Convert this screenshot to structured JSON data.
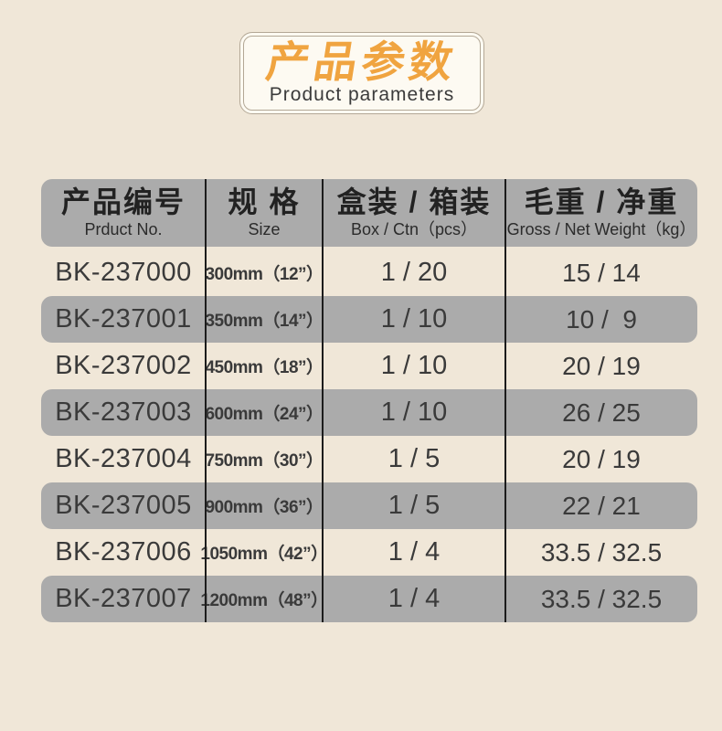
{
  "page": {
    "background": "#f0e7d8"
  },
  "badge": {
    "title_cn": "产品参数",
    "title_en": "Product parameters",
    "accent_color": "#f0a440",
    "border_color": "#b3a896",
    "fill_color": "#fdfaf2"
  },
  "table": {
    "header": [
      {
        "cn": "产品编号",
        "en": "Prduct No."
      },
      {
        "cn": "规 格",
        "en": "Size"
      },
      {
        "cn": "盒装 / 箱装",
        "en": "Box / Ctn（pcs）"
      },
      {
        "cn": "毛重 / 净重",
        "en": "Gross / Net Weight（kg）"
      }
    ],
    "rows": [
      {
        "product_no": "BK-237000",
        "size": "300mm（12”）",
        "box_ctn": "1 / 20",
        "gross_net": "15 / 14"
      },
      {
        "product_no": "BK-237001",
        "size": "350mm（14”）",
        "box_ctn": "1 / 10",
        "gross_net": "10 /  9"
      },
      {
        "product_no": "BK-237002",
        "size": "450mm（18”）",
        "box_ctn": "1 / 10",
        "gross_net": "20 / 19"
      },
      {
        "product_no": "BK-237003",
        "size": "600mm（24”）",
        "box_ctn": "1 / 10",
        "gross_net": "26 / 25"
      },
      {
        "product_no": "BK-237004",
        "size": "750mm（30”）",
        "box_ctn": "1 / 5",
        "gross_net": "20 / 19"
      },
      {
        "product_no": "BK-237005",
        "size": "900mm（36”）",
        "box_ctn": "1 / 5",
        "gross_net": "22 / 21"
      },
      {
        "product_no": "BK-237006",
        "size": "1050mm（42”）",
        "box_ctn": "1 / 4",
        "gross_net": "33.5 / 32.5"
      },
      {
        "product_no": "BK-237007",
        "size": "1200mm（48”）",
        "box_ctn": "1 / 4",
        "gross_net": "33.5 / 32.5"
      }
    ],
    "colors": {
      "header_bg": "#ababab",
      "row_alt_bg": "#ababab",
      "divider": "#1c1c1c",
      "text": "#3a3a3a"
    }
  }
}
